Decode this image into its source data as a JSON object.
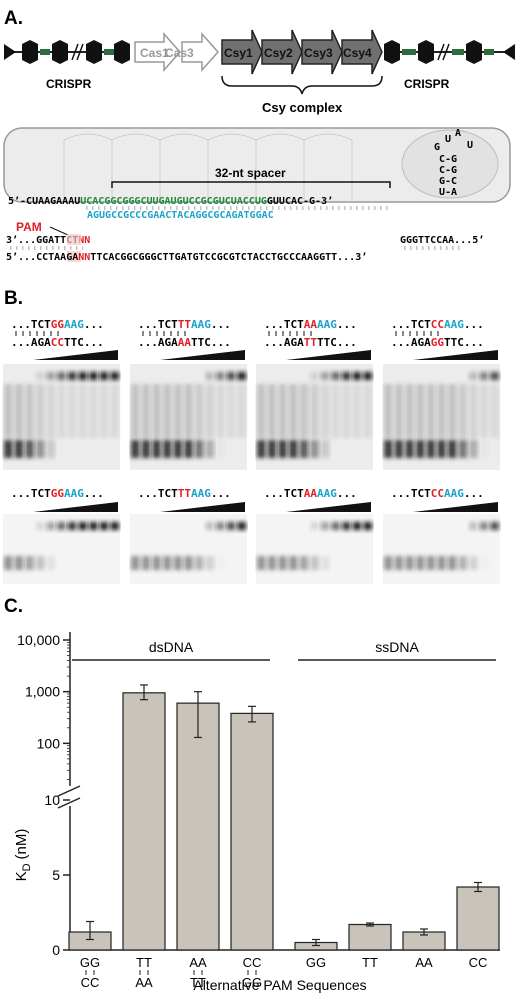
{
  "panel_labels": {
    "a": "A.",
    "b": "B.",
    "c": "C."
  },
  "operon": {
    "crispr_label": "CRISPR",
    "genes": [
      "Cas1",
      "Cas3",
      "Csy1",
      "Csy2",
      "Csy3",
      "Csy4"
    ],
    "complex_label": "Csy complex"
  },
  "spacer_diagram": {
    "spacer_label": "32-nt spacer",
    "crrna_5p": "5’-CUAAGAAAU",
    "crrna_spacer": "UCACGGCGGGCUUGAUGUCCGCGUCUACCUG",
    "crrna_3p": "GUUCAC-G-3’",
    "hairpin": [
      "U",
      "A",
      "G",
      "U",
      "C-G",
      "C-G",
      "G-C",
      "U-A"
    ],
    "target_complement": "AGUGCCGCCCGAACTACAGGCGCAGATGGAC",
    "pam_label": "PAM",
    "bottom_strand_left": "3’...GGATTCT",
    "pam_nn": "NN",
    "bottom_strand_right": "GGGTTCCAA...5’",
    "top_strand_left": "5’...CCTAAGA",
    "top_strand_rest": "TTCACGGCGGGCTTGATGTCCGCGTCTACCTGCCCAAGGTT...3’"
  },
  "gels_ds": [
    {
      "top": [
        "...TCT",
        "GG",
        "AAG",
        "..."
      ],
      "bottom": [
        "...AGA",
        "CC",
        "TTC..."
      ]
    },
    {
      "top": [
        "...TCT",
        "TT",
        "AAG",
        "..."
      ],
      "bottom": [
        "...AGA",
        "AA",
        "TTC..."
      ]
    },
    {
      "top": [
        "...TCT",
        "AA",
        "AAG",
        "..."
      ],
      "bottom": [
        "...AGA",
        "TT",
        "TTC..."
      ]
    },
    {
      "top": [
        "...TCT",
        "CC",
        "AAG",
        "..."
      ],
      "bottom": [
        "...AGA",
        "GG",
        "TTC..."
      ]
    }
  ],
  "gels_ss": [
    {
      "top": [
        "...TCT",
        "GG",
        "AAG",
        "..."
      ]
    },
    {
      "top": [
        "...TCT",
        "TT",
        "AAG",
        "..."
      ]
    },
    {
      "top": [
        "...TCT",
        "AA",
        "AAG",
        "..."
      ]
    },
    {
      "top": [
        "...TCT",
        "CC",
        "AAG",
        "..."
      ]
    }
  ],
  "colors": {
    "pam_red": "#e11f26",
    "spacer_green": "#1f8a3a",
    "cyan": "#1aa3c9",
    "bar_fill": "#c9c3b9",
    "gene_dark": "#707070"
  },
  "chart_data": {
    "type": "bar",
    "ylabel": "K",
    "ylabel_sub": "D",
    "ylabel_unit": "(nM)",
    "xlabel": "Alternative PAM Sequences",
    "y_scale": "broken: linear 0-10, log 10-10,000",
    "y_ticks": [
      "0",
      "5",
      "10",
      "100",
      "1,000",
      "10,000"
    ],
    "groups": [
      {
        "name": "dsDNA",
        "labels_top": [
          "GG",
          "TT",
          "AA",
          "CC"
        ],
        "labels_bottom": [
          "CC",
          "AA",
          "TT",
          "GG"
        ],
        "values": [
          1.2,
          950,
          600,
          380
        ],
        "err_low": [
          0.7,
          700,
          130,
          260
        ],
        "err_high": [
          1.9,
          1350,
          1000,
          520
        ]
      },
      {
        "name": "ssDNA",
        "labels_top": [
          "GG",
          "TT",
          "AA",
          "CC"
        ],
        "labels_bottom": [
          "",
          "",
          "",
          ""
        ],
        "values": [
          0.5,
          1.7,
          1.2,
          4.2
        ],
        "err_low": [
          0.3,
          1.6,
          1.0,
          3.9
        ],
        "err_high": [
          0.7,
          1.8,
          1.4,
          4.5
        ]
      }
    ]
  }
}
